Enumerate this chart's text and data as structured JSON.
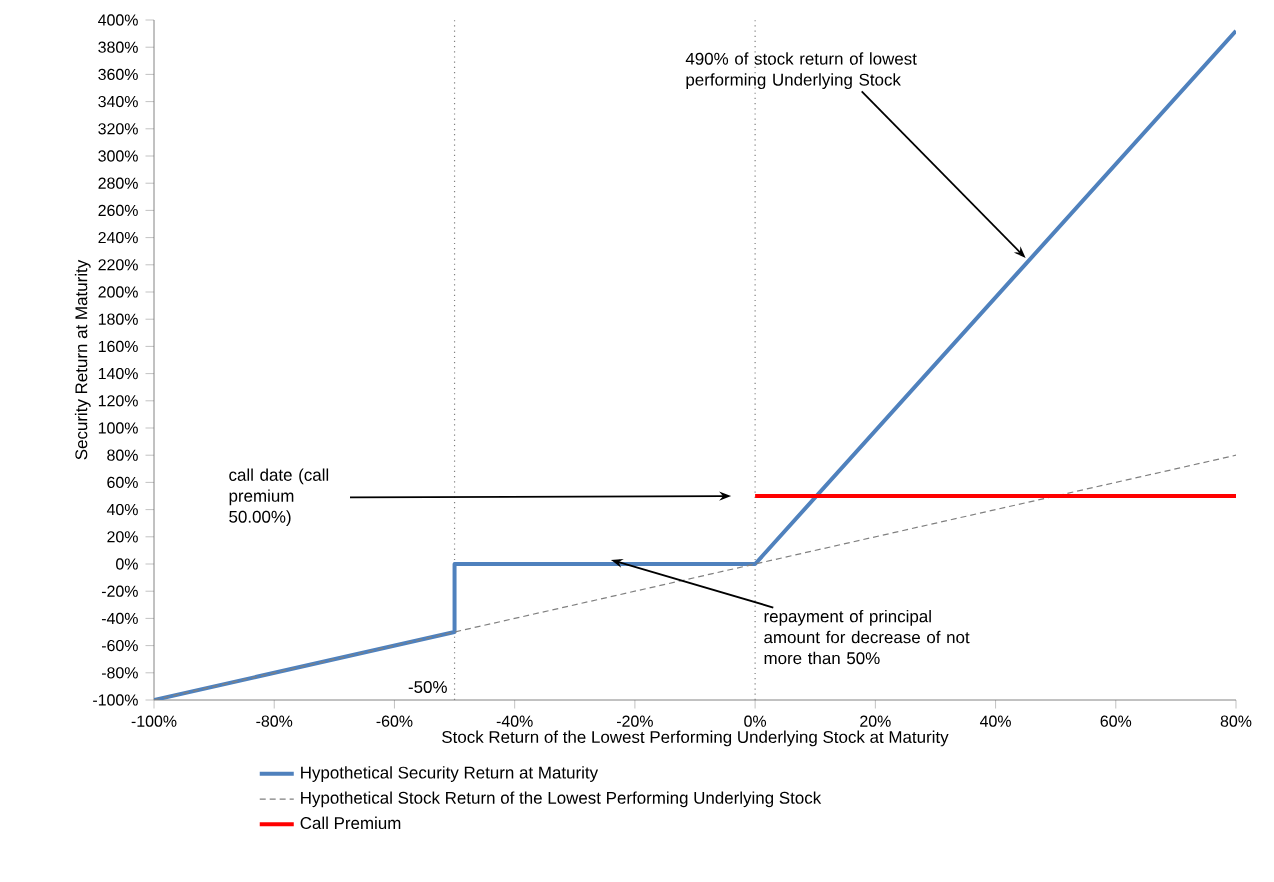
{
  "chart_data": {
    "type": "line",
    "xlabel": "Stock Return of the Lowest Performing Underlying Stock at Maturity",
    "ylabel": "Security Return at Maturity",
    "xlim": [
      -100,
      80
    ],
    "ylim": [
      -100,
      400
    ],
    "xticks": [
      {
        "value": -100,
        "label": "-100%"
      },
      {
        "value": -80,
        "label": "-80%"
      },
      {
        "value": -60,
        "label": "-60%"
      },
      {
        "value": -40,
        "label": "-40%"
      },
      {
        "value": -20,
        "label": "-20%"
      },
      {
        "value": 0,
        "label": "0%"
      },
      {
        "value": 20,
        "label": "20%"
      },
      {
        "value": 40,
        "label": "40%"
      },
      {
        "value": 60,
        "label": "60%"
      },
      {
        "value": 80,
        "label": "80%"
      }
    ],
    "yticks": [
      {
        "value": -100,
        "label": "-100%"
      },
      {
        "value": -80,
        "label": "-80%"
      },
      {
        "value": -60,
        "label": "-60%"
      },
      {
        "value": -40,
        "label": "-40%"
      },
      {
        "value": -20,
        "label": "-20%"
      },
      {
        "value": 0,
        "label": "0%"
      },
      {
        "value": 20,
        "label": "20%"
      },
      {
        "value": 40,
        "label": "40%"
      },
      {
        "value": 60,
        "label": "60%"
      },
      {
        "value": 80,
        "label": "80%"
      },
      {
        "value": 100,
        "label": "100%"
      },
      {
        "value": 120,
        "label": "120%"
      },
      {
        "value": 140,
        "label": "140%"
      },
      {
        "value": 160,
        "label": "160%"
      },
      {
        "value": 180,
        "label": "180%"
      },
      {
        "value": 200,
        "label": "200%"
      },
      {
        "value": 220,
        "label": "220%"
      },
      {
        "value": 240,
        "label": "240%"
      },
      {
        "value": 260,
        "label": "260%"
      },
      {
        "value": 280,
        "label": "280%"
      },
      {
        "value": 300,
        "label": "300%"
      },
      {
        "value": 320,
        "label": "320%"
      },
      {
        "value": 340,
        "label": "340%"
      },
      {
        "value": 360,
        "label": "360%"
      },
      {
        "value": 380,
        "label": "380%"
      },
      {
        "value": 400,
        "label": "400%"
      }
    ],
    "series": [
      {
        "name": "Hypothetical Security Return at Maturity",
        "color": "#4f81bd",
        "line_style": "solid",
        "x": [
          -100,
          -50,
          -50,
          0,
          80
        ],
        "values": [
          -100,
          -50,
          0,
          0,
          392
        ]
      },
      {
        "name": "Hypothetical Stock Return of the Lowest Performing Underlying Stock",
        "color": "#808080",
        "line_style": "dashed",
        "x": [
          -100,
          80
        ],
        "values": [
          -100,
          80
        ]
      },
      {
        "name": "Call Premium",
        "color": "#ff0000",
        "line_style": "solid",
        "x": [
          0,
          80
        ],
        "values": [
          50,
          50
        ]
      }
    ],
    "ref_lines": [
      {
        "axis": "x",
        "value": -50,
        "label": "-50%",
        "color": "#808080",
        "line_style": "dotted"
      },
      {
        "axis": "x",
        "value": 0,
        "label": null,
        "color": "#808080",
        "line_style": "dotted"
      }
    ],
    "annotations": [
      {
        "text": "490% of stock return of lowest performing Underlying Stock",
        "x": 45,
        "y": 225
      },
      "call date (call premium 50.00%)",
      {
        "text": "repayment of principal amount for decrease of not more than 50%",
        "x": -24,
        "y": 3
      }
    ],
    "legend": "bottom",
    "grid": false,
    "marker": "none"
  }
}
